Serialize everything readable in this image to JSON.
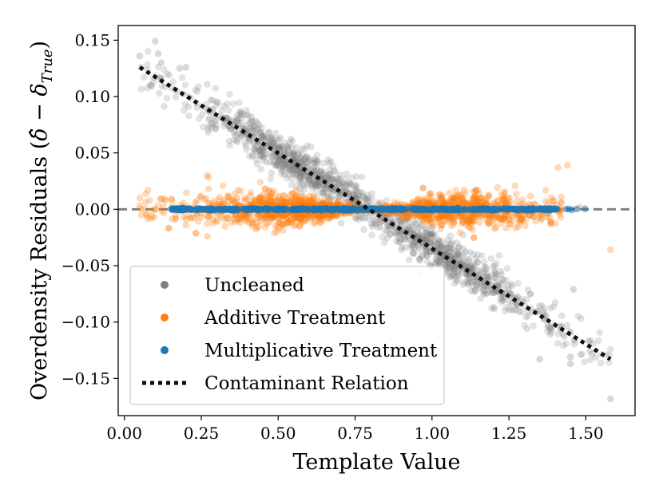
{
  "chart_data": {
    "type": "scatter",
    "xlabel": "Template Value",
    "ylabel_main": "Overdensity Residuals (",
    "ylabel_delta_hat": "δ̂",
    "ylabel_minus": " − ",
    "ylabel_delta": "δ",
    "ylabel_sub": "True",
    "ylabel_close": ")",
    "xlim": [
      -0.02,
      1.66
    ],
    "ylim": [
      -0.183,
      0.163
    ],
    "xticks": [
      0.0,
      0.25,
      0.5,
      0.75,
      1.0,
      1.25,
      1.5
    ],
    "xtick_labels": [
      "0.00",
      "0.25",
      "0.50",
      "0.75",
      "1.00",
      "1.25",
      "1.50"
    ],
    "yticks": [
      0.15,
      0.1,
      0.05,
      0.0,
      -0.05,
      -0.1,
      -0.15
    ],
    "ytick_labels": [
      "0.15",
      "0.10",
      "0.05",
      "0.00",
      "−0.05",
      "−0.10",
      "−0.15"
    ],
    "zero_line": {
      "y": 0.0,
      "style": "dashed",
      "color": "#808080"
    },
    "legend_location": "lower-left",
    "colors": {
      "uncleaned": "#808080",
      "additive": "#ff7f0e",
      "multiplicative": "#1f77b4",
      "relation": "#111111"
    },
    "series": [
      {
        "name": "Uncleaned",
        "kind": "scatter",
        "color": "#808080",
        "slope": -0.168,
        "intercept": 0.134,
        "x_range": [
          0.05,
          1.58
        ],
        "spread_sd": 0.009,
        "n_points": 1400,
        "outliers": [
          {
            "x": 0.05,
            "y": 0.136
          },
          {
            "x": 0.1,
            "y": 0.149
          },
          {
            "x": 0.11,
            "y": 0.138
          },
          {
            "x": 0.12,
            "y": 0.13
          },
          {
            "x": 0.18,
            "y": 0.125
          },
          {
            "x": 0.2,
            "y": 0.126
          },
          {
            "x": 0.12,
            "y": 0.116
          },
          {
            "x": 1.45,
            "y": -0.137
          },
          {
            "x": 1.45,
            "y": -0.131
          },
          {
            "x": 1.51,
            "y": -0.117
          },
          {
            "x": 1.52,
            "y": -0.128
          },
          {
            "x": 1.58,
            "y": -0.168
          },
          {
            "x": 1.35,
            "y": -0.133
          },
          {
            "x": 1.46,
            "y": -0.071
          }
        ]
      },
      {
        "name": "Additive Treatment",
        "kind": "scatter",
        "color": "#ff7f0e",
        "x_range": [
          0.05,
          1.58
        ],
        "center": 0.8,
        "spread_scale": 0.028,
        "n_points": 1800,
        "outliers": [
          {
            "x": 0.05,
            "y": 0.01
          },
          {
            "x": 0.05,
            "y": 0.003
          },
          {
            "x": 0.13,
            "y": 0.009
          },
          {
            "x": 0.2,
            "y": -0.014
          },
          {
            "x": 0.27,
            "y": 0.03
          },
          {
            "x": 0.27,
            "y": -0.024
          },
          {
            "x": 1.41,
            "y": 0.037
          },
          {
            "x": 1.44,
            "y": 0.039
          },
          {
            "x": 1.48,
            "y": 0.002
          },
          {
            "x": 1.58,
            "y": -0.036
          }
        ]
      },
      {
        "name": "Multiplicative Treatment",
        "kind": "scatter",
        "color": "#1f77b4",
        "x_range": [
          0.15,
          1.58
        ],
        "y_value": 0.0,
        "n_points": 600
      },
      {
        "name": "Contaminant Relation",
        "kind": "line",
        "style": "dotted",
        "color": "#111111",
        "x": [
          0.05,
          1.58
        ],
        "y": [
          0.126,
          -0.133
        ]
      }
    ],
    "legend": [
      {
        "label": "Uncleaned",
        "color": "#808080",
        "marker": "dot"
      },
      {
        "label": "Additive Treatment",
        "color": "#ff7f0e",
        "marker": "dot"
      },
      {
        "label": "Multiplicative Treatment",
        "color": "#1f77b4",
        "marker": "dot"
      },
      {
        "label": "Contaminant Relation",
        "color": "#111111",
        "marker": "dotted-line"
      }
    ]
  }
}
